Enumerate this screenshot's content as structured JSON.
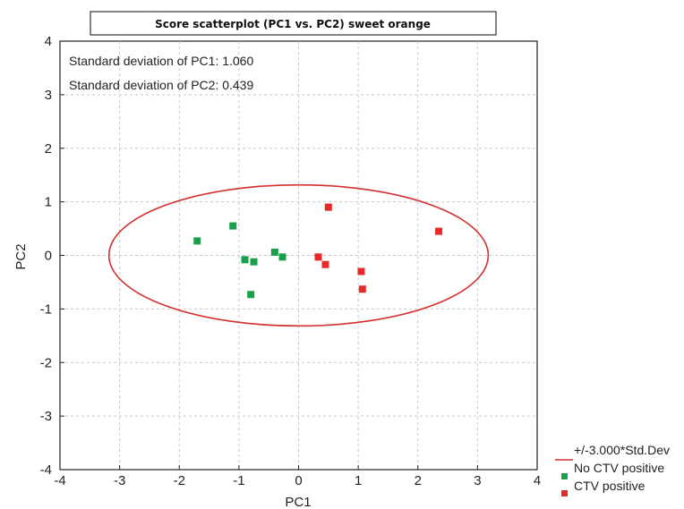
{
  "chart_data": {
    "type": "scatter",
    "title": "Score scatterplot (PC1 vs. PC2) sweet orange",
    "xlabel": "PC1",
    "ylabel": "PC2",
    "xlim": [
      -4,
      4
    ],
    "ylim": [
      -4,
      4
    ],
    "x_ticks": [
      "-4",
      "-3",
      "-2",
      "-1",
      "0",
      "1",
      "2",
      "3",
      "4"
    ],
    "y_ticks": [
      "4",
      "3",
      "2",
      "1",
      "0",
      "-1",
      "-2",
      "-3",
      "-4"
    ],
    "grid": true,
    "legend_position": "bottom-right outside",
    "annotations": [
      "Standard deviation of PC1: 1.060",
      "Standard deviation of PC2: 0.439"
    ],
    "ellipse": {
      "name": "+/-3.000*Std.Dev",
      "center": [
        0,
        0
      ],
      "rx": 3.18,
      "ry": 1.317,
      "color": "#d32f2f"
    },
    "series": [
      {
        "name": "No CTV positive",
        "color": "#1aa04a",
        "points": [
          {
            "x": -1.7,
            "y": 0.27
          },
          {
            "x": -1.1,
            "y": 0.55
          },
          {
            "x": -0.9,
            "y": -0.08
          },
          {
            "x": -0.75,
            "y": -0.12
          },
          {
            "x": -0.4,
            "y": 0.06
          },
          {
            "x": -0.27,
            "y": -0.03
          },
          {
            "x": -0.8,
            "y": -0.73
          }
        ]
      },
      {
        "name": "CTV positive",
        "color": "#e32b2b",
        "points": [
          {
            "x": 0.5,
            "y": 0.9
          },
          {
            "x": 0.33,
            "y": -0.03
          },
          {
            "x": 0.45,
            "y": -0.17
          },
          {
            "x": 1.05,
            "y": -0.3
          },
          {
            "x": 1.07,
            "y": -0.63
          },
          {
            "x": 2.35,
            "y": 0.45
          }
        ]
      }
    ]
  }
}
